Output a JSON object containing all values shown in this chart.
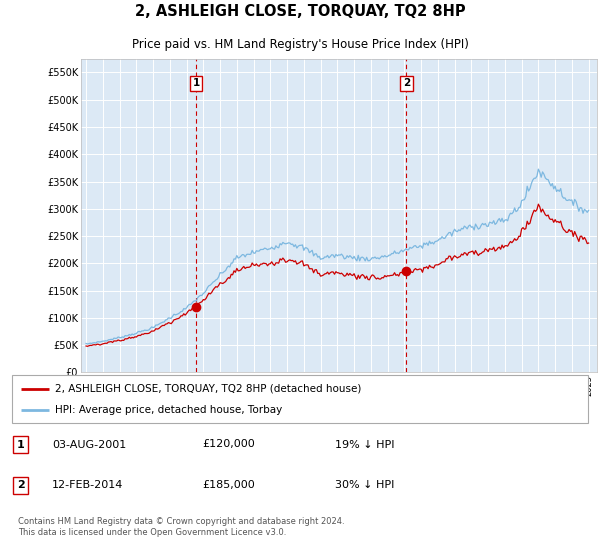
{
  "title": "2, ASHLEIGH CLOSE, TORQUAY, TQ2 8HP",
  "subtitle": "Price paid vs. HM Land Registry's House Price Index (HPI)",
  "sale1_date": "03-AUG-2001",
  "sale1_price": 120000,
  "sale1_label": "1",
  "sale1_year_f": 2001.58,
  "sale2_date": "12-FEB-2014",
  "sale2_price": 185000,
  "sale2_label": "2",
  "sale2_year_f": 2014.12,
  "legend_line1": "2, ASHLEIGH CLOSE, TORQUAY, TQ2 8HP (detached house)",
  "legend_line2": "HPI: Average price, detached house, Torbay",
  "table_row1": [
    "1",
    "03-AUG-2001",
    "£120,000",
    "19% ↓ HPI"
  ],
  "table_row2": [
    "2",
    "12-FEB-2014",
    "£185,000",
    "30% ↓ HPI"
  ],
  "footnote": "Contains HM Land Registry data © Crown copyright and database right 2024.\nThis data is licensed under the Open Government Licence v3.0.",
  "hpi_color": "#7db8e0",
  "price_color": "#cc0000",
  "vline_color": "#cc0000",
  "bg_color": "#dce9f5",
  "ylim_max": 575000,
  "yticks": [
    0,
    50000,
    100000,
    150000,
    200000,
    250000,
    300000,
    350000,
    400000,
    450000,
    500000,
    550000
  ],
  "xlim_start": 1994.7,
  "xlim_end": 2025.5
}
